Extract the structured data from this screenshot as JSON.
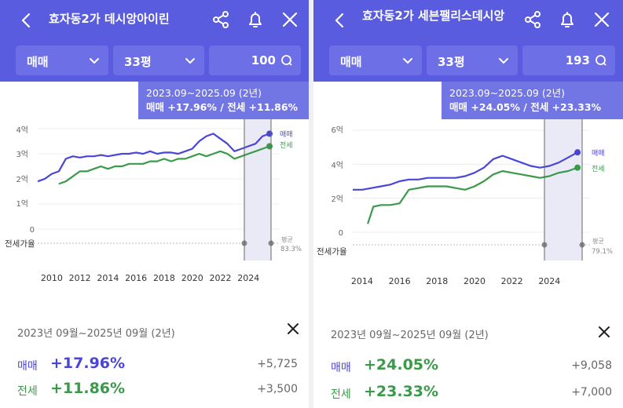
{
  "colors": {
    "header": "#5a5ce0",
    "sale": "#4a45d6",
    "jeonse": "#3a9a4a",
    "accent": "#7275e4"
  },
  "panels": [
    {
      "title": "효자동2가 데시앙아이린",
      "filters": {
        "trade": "매매",
        "size": "33평",
        "count": "100"
      },
      "tooltip": {
        "range": "2023.09~2025.09 (2년)",
        "sale_label": "매매 +17.96%",
        "sep": "/",
        "jeonse_label": "전세 +11.86%"
      },
      "chart": {
        "y_ticks": [
          "4억",
          "3억",
          "2억",
          "1억",
          "0"
        ],
        "x_ticks": [
          "2010",
          "2012",
          "2014",
          "2016",
          "2018",
          "2020",
          "2022",
          "2024"
        ],
        "legend_sale": "매매",
        "legend_jeonse": "전세",
        "ratio_label": "전세가율",
        "avg_label": "평균",
        "avg_value": "83.3%"
      },
      "summary": {
        "range": "2023년 09월~2025년 09월 (2년)",
        "sale": {
          "label": "매매",
          "pct": "+17.96%",
          "amount": "+5,725"
        },
        "jeonse": {
          "label": "전세",
          "pct": "+11.86%",
          "amount": "+3,500"
        }
      }
    },
    {
      "title": "효자동2가 세븐팰리스데시앙",
      "filters": {
        "trade": "매매",
        "size": "33평",
        "count": "193"
      },
      "tooltip": {
        "range": "2023.09~2025.09 (2년)",
        "sale_label": "매매 +24.05%",
        "sep": "/",
        "jeonse_label": "전세 +23.33%"
      },
      "chart": {
        "y_ticks": [
          "6억",
          "4억",
          "2억",
          "0"
        ],
        "x_ticks": [
          "2014",
          "2016",
          "2018",
          "2020",
          "2022",
          "2024"
        ],
        "legend_sale": "매매",
        "legend_jeonse": "전세",
        "ratio_label": "전세가율",
        "avg_label": "평균",
        "avg_value": "79.1%"
      },
      "summary": {
        "range": "2023년 09월~2025년 09월 (2년)",
        "sale": {
          "label": "매매",
          "pct": "+24.05%",
          "amount": "+9,058"
        },
        "jeonse": {
          "label": "전세",
          "pct": "+23.33%",
          "amount": "+7,000"
        }
      }
    }
  ],
  "chart_data": [
    {
      "type": "line",
      "title": "",
      "ylabel": "",
      "xlabel": "",
      "ylim": [
        0,
        4
      ],
      "xlim": [
        2009,
        2026
      ],
      "series": [
        {
          "name": "매매",
          "x": [
            2009.0,
            2009.5,
            2010.0,
            2010.5,
            2011.0,
            2011.5,
            2012.0,
            2012.5,
            2013.0,
            2013.5,
            2014.0,
            2014.5,
            2015.0,
            2015.5,
            2016.0,
            2016.5,
            2017.0,
            2017.5,
            2018.0,
            2018.5,
            2019.0,
            2019.5,
            2020.0,
            2020.5,
            2021.0,
            2021.5,
            2022.0,
            2022.5,
            2023.0,
            2023.5,
            2024.0,
            2024.5,
            2025.0,
            2025.5
          ],
          "y": [
            1.9,
            2.0,
            2.2,
            2.3,
            2.8,
            2.9,
            2.85,
            2.9,
            2.9,
            2.95,
            2.9,
            2.95,
            3.0,
            3.0,
            3.05,
            3.0,
            3.1,
            3.0,
            3.05,
            3.05,
            3.0,
            3.1,
            3.2,
            3.5,
            3.7,
            3.8,
            3.6,
            3.4,
            3.1,
            3.2,
            3.3,
            3.4,
            3.7,
            3.8
          ]
        },
        {
          "name": "전세",
          "x": [
            2010.5,
            2011.0,
            2011.5,
            2012.0,
            2012.5,
            2013.0,
            2013.5,
            2014.0,
            2014.5,
            2015.0,
            2015.5,
            2016.0,
            2016.5,
            2017.0,
            2017.5,
            2018.0,
            2018.5,
            2019.0,
            2019.5,
            2020.0,
            2020.5,
            2021.0,
            2021.5,
            2022.0,
            2022.5,
            2023.0,
            2023.5,
            2024.0,
            2024.5,
            2025.0,
            2025.5
          ],
          "y": [
            1.8,
            1.9,
            2.1,
            2.3,
            2.3,
            2.4,
            2.5,
            2.4,
            2.5,
            2.5,
            2.6,
            2.6,
            2.6,
            2.7,
            2.7,
            2.8,
            2.7,
            2.8,
            2.8,
            2.9,
            3.0,
            2.9,
            3.0,
            3.1,
            3.0,
            2.8,
            2.9,
            3.0,
            3.1,
            3.2,
            3.3
          ]
        }
      ],
      "annotations": [
        "전세가율 평균 83.3%"
      ]
    },
    {
      "type": "line",
      "title": "",
      "ylabel": "",
      "xlabel": "",
      "ylim": [
        0,
        6
      ],
      "xlim": [
        2013.5,
        2026
      ],
      "series": [
        {
          "name": "매매",
          "x": [
            2013.5,
            2014.0,
            2014.5,
            2015.0,
            2015.5,
            2016.0,
            2016.5,
            2017.0,
            2017.5,
            2018.0,
            2018.5,
            2019.0,
            2019.5,
            2020.0,
            2020.5,
            2021.0,
            2021.5,
            2022.0,
            2022.5,
            2023.0,
            2023.5,
            2024.0,
            2024.5,
            2025.0,
            2025.5
          ],
          "y": [
            2.5,
            2.5,
            2.6,
            2.7,
            2.8,
            3.0,
            3.1,
            3.1,
            3.2,
            3.2,
            3.2,
            3.2,
            3.3,
            3.5,
            3.8,
            4.3,
            4.5,
            4.3,
            4.1,
            3.9,
            3.8,
            3.9,
            4.1,
            4.4,
            4.7
          ]
        },
        {
          "name": "전세",
          "x": [
            2014.3,
            2014.6,
            2015.0,
            2015.5,
            2016.0,
            2016.5,
            2017.0,
            2017.5,
            2018.0,
            2018.5,
            2019.0,
            2019.5,
            2020.0,
            2020.5,
            2021.0,
            2021.5,
            2022.0,
            2022.5,
            2023.0,
            2023.5,
            2024.0,
            2024.5,
            2025.0,
            2025.5
          ],
          "y": [
            0.5,
            1.5,
            1.6,
            1.6,
            1.7,
            2.5,
            2.6,
            2.7,
            2.7,
            2.7,
            2.6,
            2.5,
            2.7,
            3.0,
            3.4,
            3.6,
            3.5,
            3.4,
            3.3,
            3.2,
            3.3,
            3.5,
            3.6,
            3.8
          ]
        }
      ],
      "annotations": [
        "전세가율 평균 79.1%"
      ]
    }
  ]
}
